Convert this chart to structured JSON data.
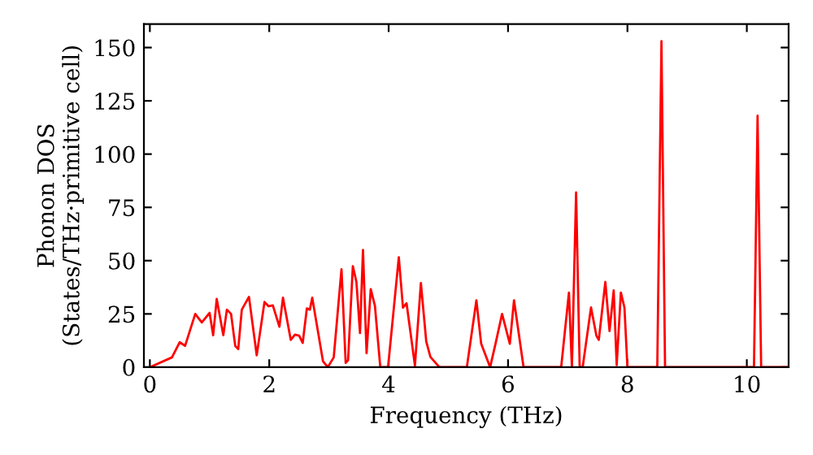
{
  "chart_data": {
    "type": "line",
    "xlabel": "Frequency (THz)",
    "ylabel": "Phonon DOS\n(States/THz·primitive cell)",
    "grid": false,
    "marker": "none",
    "line_style": "solid",
    "xlim": [
      -0.1,
      10.7
    ],
    "ylim": [
      0,
      161
    ],
    "xticks": [
      0,
      2,
      4,
      6,
      8,
      10
    ],
    "yticks": [
      0,
      25,
      50,
      75,
      100,
      125,
      150
    ],
    "series": [
      {
        "color": "#ff0000",
        "x": [
          0,
          0.37,
          0.5,
          0.59,
          0.76,
          0.87,
          1.0,
          1.06,
          1.12,
          1.23,
          1.29,
          1.36,
          1.43,
          1.48,
          1.54,
          1.66,
          1.79,
          1.92,
          1.99,
          2.06,
          2.17,
          2.23,
          2.36,
          2.43,
          2.5,
          2.56,
          2.63,
          2.68,
          2.72,
          2.9,
          2.98,
          3.08,
          3.21,
          3.28,
          3.32,
          3.4,
          3.46,
          3.52,
          3.57,
          3.63,
          3.7,
          3.77,
          3.86,
          3.99,
          4.17,
          4.24,
          4.3,
          4.44,
          4.54,
          4.63,
          4.7,
          4.85,
          5.31,
          5.47,
          5.55,
          5.7,
          5.79,
          5.9,
          6.03,
          6.1,
          6.26,
          6.89,
          7.02,
          7.07,
          7.14,
          7.2,
          7.25,
          7.39,
          7.48,
          7.52,
          7.63,
          7.7,
          7.77,
          7.82,
          7.89,
          7.95,
          8.0,
          8.5,
          8.57,
          8.63,
          10.12,
          10.18,
          10.24,
          10.7
        ],
        "values": [
          0,
          4.6,
          11.7,
          10,
          25,
          21,
          25.5,
          15,
          32,
          15,
          27,
          25,
          10,
          8.5,
          27,
          33,
          5.6,
          30.6,
          28.6,
          29,
          19,
          32.6,
          12.8,
          15.3,
          14.8,
          11.4,
          27.6,
          27,
          32.6,
          2.8,
          0,
          4.6,
          46,
          2,
          3.3,
          47.4,
          40,
          16,
          55,
          6.6,
          36.6,
          28.8,
          0,
          0,
          51.6,
          27.9,
          30,
          0.8,
          39.5,
          12,
          4.8,
          0,
          0,
          31.4,
          11,
          0,
          11,
          25,
          11,
          31.4,
          0,
          0,
          35,
          0,
          82,
          0,
          0,
          28,
          14.8,
          12.8,
          40,
          17,
          36,
          1,
          35,
          28,
          0,
          0,
          153,
          0,
          0,
          118,
          0,
          0
        ]
      }
    ]
  }
}
